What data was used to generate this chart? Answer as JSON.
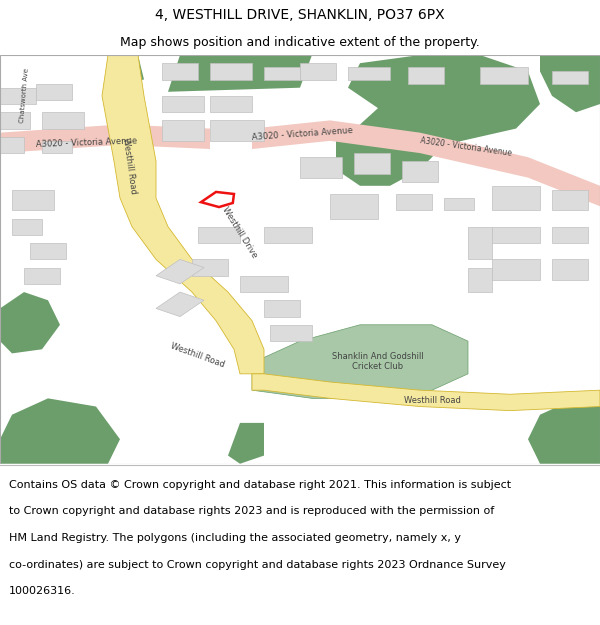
{
  "title": "4, WESTHILL DRIVE, SHANKLIN, PO37 6PX",
  "subtitle": "Map shows position and indicative extent of the property.",
  "footer_line1": "Contains OS data © Crown copyright and database right 2021. This information is subject",
  "footer_line2": "to Crown copyright and database rights 2023 and is reproduced with the permission of",
  "footer_line3": "HM Land Registry. The polygons (including the associated geometry, namely x, y",
  "footer_line4": "co-ordinates) are subject to Crown copyright and database rights 2023 Ordnance Survey",
  "footer_line5": "100026316.",
  "map_bg": "#f8f6f2",
  "road_pink_color": "#f2c8c0",
  "road_yellow_color": "#f5e9a0",
  "road_yellow_outline": "#d4b830",
  "green_dark": "#6b9e6b",
  "green_light": "#a8c8a8",
  "building_color": "#dcdcdc",
  "building_outline": "#c0c0c0",
  "property_color": "#ee1111",
  "road_label_color": "#444444",
  "title_fontsize": 10,
  "subtitle_fontsize": 9,
  "footer_fontsize": 8,
  "map_border_color": "#aaaaaa"
}
